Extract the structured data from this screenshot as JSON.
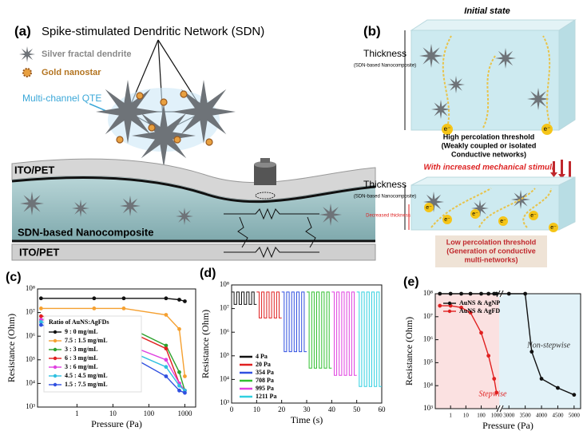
{
  "panel_a": {
    "label": "(a)",
    "title": "Spike-stimulated Dendritic Network (SDN)",
    "legend_dendrite": "Silver fractal dendrite",
    "legend_nanostar": "Gold nanostar",
    "qte": "Multi-channel QTE",
    "top_layer": "ITO/PET",
    "middle_layer": "SDN-based Nanocomposite",
    "bottom_layer": "ITO/PET"
  },
  "panel_b": {
    "label": "(b)",
    "state": "Initial state",
    "thickness_top": "Thickness",
    "thickness_top_sub": "(SDN-based Nanocomposite)",
    "high_1": "High percolation threshold",
    "high_2": "(Weakly coupled or isolated",
    "high_3": "Conductive networks)",
    "stimuli": "With increased mechanical stimuli",
    "thickness_bottom": "Thickness",
    "thickness_bottom_sub": "(SDN-based Nanocomposite)",
    "decreased": "Decreased thickness",
    "low_1": "Low percolation threshold",
    "low_2": "(Generation of conductive",
    "low_3": "multi-networks)",
    "electron": "e⁻"
  },
  "chart_data": [
    {
      "type": "line",
      "panel_label": "(c)",
      "x_label": "Pressure (Pa)",
      "y_label": "Resistance (Ohm)",
      "xscale": "log",
      "yscale": "log",
      "xlim": [
        0.08,
        2000
      ],
      "ylim": [
        1000,
        100000000.0
      ],
      "xticks": [
        1,
        10,
        100,
        1000
      ],
      "yticks": [
        {
          "value": 1000,
          "label": "10³"
        },
        {
          "value": 10000,
          "label": "10⁴"
        },
        {
          "value": 100000,
          "label": "10⁵"
        },
        {
          "value": 1000000,
          "label": "10⁶"
        },
        {
          "value": 10000000.0,
          "label": "10⁷"
        },
        {
          "value": 100000000.0,
          "label": "10⁸"
        }
      ],
      "legend_title": "Ratio of AuNS:AgFDs",
      "legend": "upper left",
      "x": [
        0.1,
        3,
        20,
        300,
        700,
        1000
      ],
      "series": [
        {
          "name": "9 : 0    mg/mL",
          "color": "#111111",
          "values": [
            40000000.0,
            40000000.0,
            40000000.0,
            40000000.0,
            35000000.0,
            30000000.0
          ]
        },
        {
          "name": "7.5 : 1.5  mg/mL",
          "color": "#f5a030",
          "values": [
            15000000.0,
            15000000.0,
            15000000.0,
            8000000.0,
            2000000.0,
            20000
          ]
        },
        {
          "name": "3 : 3    mg/mL",
          "color": "#2ca02c",
          "values": [
            5000000.0,
            5000000.0,
            3000000.0,
            400000,
            30000,
            5000
          ]
        },
        {
          "name": "6 : 3    mg/mL",
          "color": "#e02020",
          "values": [
            7000000.0,
            6000000.0,
            2000000.0,
            300000,
            10000,
            5000
          ]
        },
        {
          "name": "3 : 6    mg/mL",
          "color": "#e040e0",
          "values": [
            5000000.0,
            3000000.0,
            500000,
            100000,
            10000,
            5000
          ]
        },
        {
          "name": "4.5 : 4.5  mg/mL",
          "color": "#30c0e0",
          "values": [
            4000000.0,
            1500000.0,
            300000,
            50000,
            8000,
            5000
          ]
        },
        {
          "name": "1.5 : 7.5  mg/mL",
          "color": "#3050e0",
          "values": [
            3000000.0,
            1000000.0,
            200000,
            20000,
            5000,
            4000
          ]
        }
      ]
    },
    {
      "type": "step",
      "panel_label": "(d)",
      "x_label": "Time (s)",
      "y_label": "Resistance (Ohm)",
      "xscale": "linear",
      "yscale": "log",
      "xlim": [
        0,
        60
      ],
      "ylim": [
        1000,
        100000000.0
      ],
      "xticks": [
        0,
        10,
        20,
        30,
        40,
        50,
        60
      ],
      "yticks": [
        {
          "value": 1000,
          "label": "10³"
        },
        {
          "value": 10000,
          "label": "10⁴"
        },
        {
          "value": 100000,
          "label": "10⁵"
        },
        {
          "value": 1000000,
          "label": "10⁶"
        },
        {
          "value": 10000000.0,
          "label": "10⁷"
        },
        {
          "value": 100000000.0,
          "label": "10⁸"
        }
      ],
      "legend": "lower left",
      "series": [
        {
          "name": "4 Pa",
          "color": "#111111",
          "x": [
            0,
            1,
            1,
            2,
            2,
            3,
            3,
            4,
            4,
            5,
            5,
            6,
            6,
            7,
            7,
            8,
            8,
            9,
            9,
            10
          ],
          "values": [
            50000000.0,
            50000000.0,
            15000000.0,
            15000000.0,
            50000000.0,
            50000000.0,
            15000000.0,
            15000000.0,
            50000000.0,
            50000000.0,
            15000000.0,
            15000000.0,
            50000000.0,
            50000000.0,
            15000000.0,
            15000000.0,
            50000000.0,
            50000000.0,
            15000000.0,
            15000000.0
          ]
        },
        {
          "name": "20 Pa",
          "color": "#e02020",
          "x": [
            10,
            11,
            11,
            12,
            12,
            13,
            13,
            14,
            14,
            15,
            15,
            16,
            16,
            17,
            17,
            18,
            18,
            19,
            19,
            20
          ],
          "values": [
            50000000.0,
            50000000.0,
            4000000.0,
            4000000.0,
            50000000.0,
            50000000.0,
            4000000.0,
            4000000.0,
            50000000.0,
            50000000.0,
            4000000.0,
            4000000.0,
            50000000.0,
            50000000.0,
            4000000.0,
            4000000.0,
            50000000.0,
            50000000.0,
            4000000.0,
            4000000.0
          ]
        },
        {
          "name": "354 Pa",
          "color": "#3050e0",
          "x": [
            20,
            21,
            21,
            22,
            22,
            23,
            23,
            24,
            24,
            25,
            25,
            26,
            26,
            27,
            27,
            28,
            28,
            29,
            29,
            30
          ],
          "values": [
            50000000.0,
            50000000.0,
            150000,
            150000,
            50000000.0,
            50000000.0,
            150000,
            150000,
            50000000.0,
            50000000.0,
            150000,
            150000,
            50000000.0,
            50000000.0,
            150000,
            150000,
            50000000.0,
            50000000.0,
            150000,
            150000
          ]
        },
        {
          "name": "708 Pa",
          "color": "#30c030",
          "x": [
            30,
            31,
            31,
            32,
            32,
            33,
            33,
            34,
            34,
            35,
            35,
            36,
            36,
            37,
            37,
            38,
            38,
            39,
            39,
            40
          ],
          "values": [
            50000000.0,
            50000000.0,
            30000,
            30000,
            50000000.0,
            50000000.0,
            30000,
            30000,
            50000000.0,
            50000000.0,
            30000,
            30000,
            50000000.0,
            50000000.0,
            30000,
            30000,
            50000000.0,
            50000000.0,
            30000,
            30000
          ]
        },
        {
          "name": "995 Pa",
          "color": "#e040e0",
          "x": [
            40,
            41,
            41,
            42,
            42,
            43,
            43,
            44,
            44,
            45,
            45,
            46,
            46,
            47,
            47,
            48,
            48,
            49,
            49,
            50
          ],
          "values": [
            50000000.0,
            50000000.0,
            15000,
            15000,
            50000000.0,
            50000000.0,
            15000,
            15000,
            50000000.0,
            50000000.0,
            15000,
            15000,
            50000000.0,
            50000000.0,
            15000,
            15000,
            50000000.0,
            50000000.0,
            15000,
            15000
          ]
        },
        {
          "name": "1211 Pa",
          "color": "#30d0e0",
          "x": [
            50,
            51,
            51,
            52,
            52,
            53,
            53,
            54,
            54,
            55,
            55,
            56,
            56,
            57,
            57,
            58,
            58,
            59,
            59,
            60
          ],
          "values": [
            50000000.0,
            50000000.0,
            5000,
            5000,
            50000000.0,
            50000000.0,
            5000,
            5000,
            50000000.0,
            50000000.0,
            5000,
            5000,
            50000000.0,
            50000000.0,
            5000,
            5000,
            50000000.0,
            50000000.0,
            5000,
            5000
          ]
        }
      ]
    },
    {
      "type": "line",
      "panel_label": "(e)",
      "x_label": "Pressure (Pa)",
      "y_label": "Resistance (Ohm)",
      "xscale": "log",
      "yscale": "log",
      "xlim": [
        0.1,
        5200
      ],
      "xbreak": [
        1500,
        2800
      ],
      "ylim": [
        1000,
        100000000.0
      ],
      "xticks": [
        1,
        10,
        100,
        1000,
        3000,
        3500,
        4000,
        4500,
        5000
      ],
      "yticks": [
        {
          "value": 1000,
          "label": "10³"
        },
        {
          "value": 10000,
          "label": "10⁴"
        },
        {
          "value": 100000,
          "label": "10⁵"
        },
        {
          "value": 1000000,
          "label": "10⁶"
        },
        {
          "value": 10000000.0,
          "label": "10⁷"
        },
        {
          "value": 100000000.0,
          "label": "10⁸"
        }
      ],
      "legend": "upper left",
      "series": [
        {
          "name": "AuNS & AgNP",
          "color": "#111111",
          "x": [
            0.2,
            1,
            5,
            20,
            100,
            300,
            700,
            1000,
            3000,
            3500,
            3700,
            4000,
            4500,
            5000
          ],
          "values": [
            100000000.0,
            100000000.0,
            100000000.0,
            100000000.0,
            100000000.0,
            100000000.0,
            100000000.0,
            100000000.0,
            100000000.0,
            100000000.0,
            300000,
            20000,
            8000,
            4000
          ]
        },
        {
          "name": "AuNS & AgFD",
          "color": "#e02020",
          "x": [
            0.2,
            1,
            5,
            20,
            100,
            300,
            700,
            1000
          ],
          "values": [
            30000000.0,
            30000000.0,
            25000000.0,
            15000000.0,
            2000000.0,
            200000,
            20000,
            5000
          ]
        }
      ],
      "annotations": [
        {
          "text": "Stepwise",
          "color": "#e02020"
        },
        {
          "text": "Non-stepwise",
          "color": "#333333"
        }
      ]
    }
  ]
}
